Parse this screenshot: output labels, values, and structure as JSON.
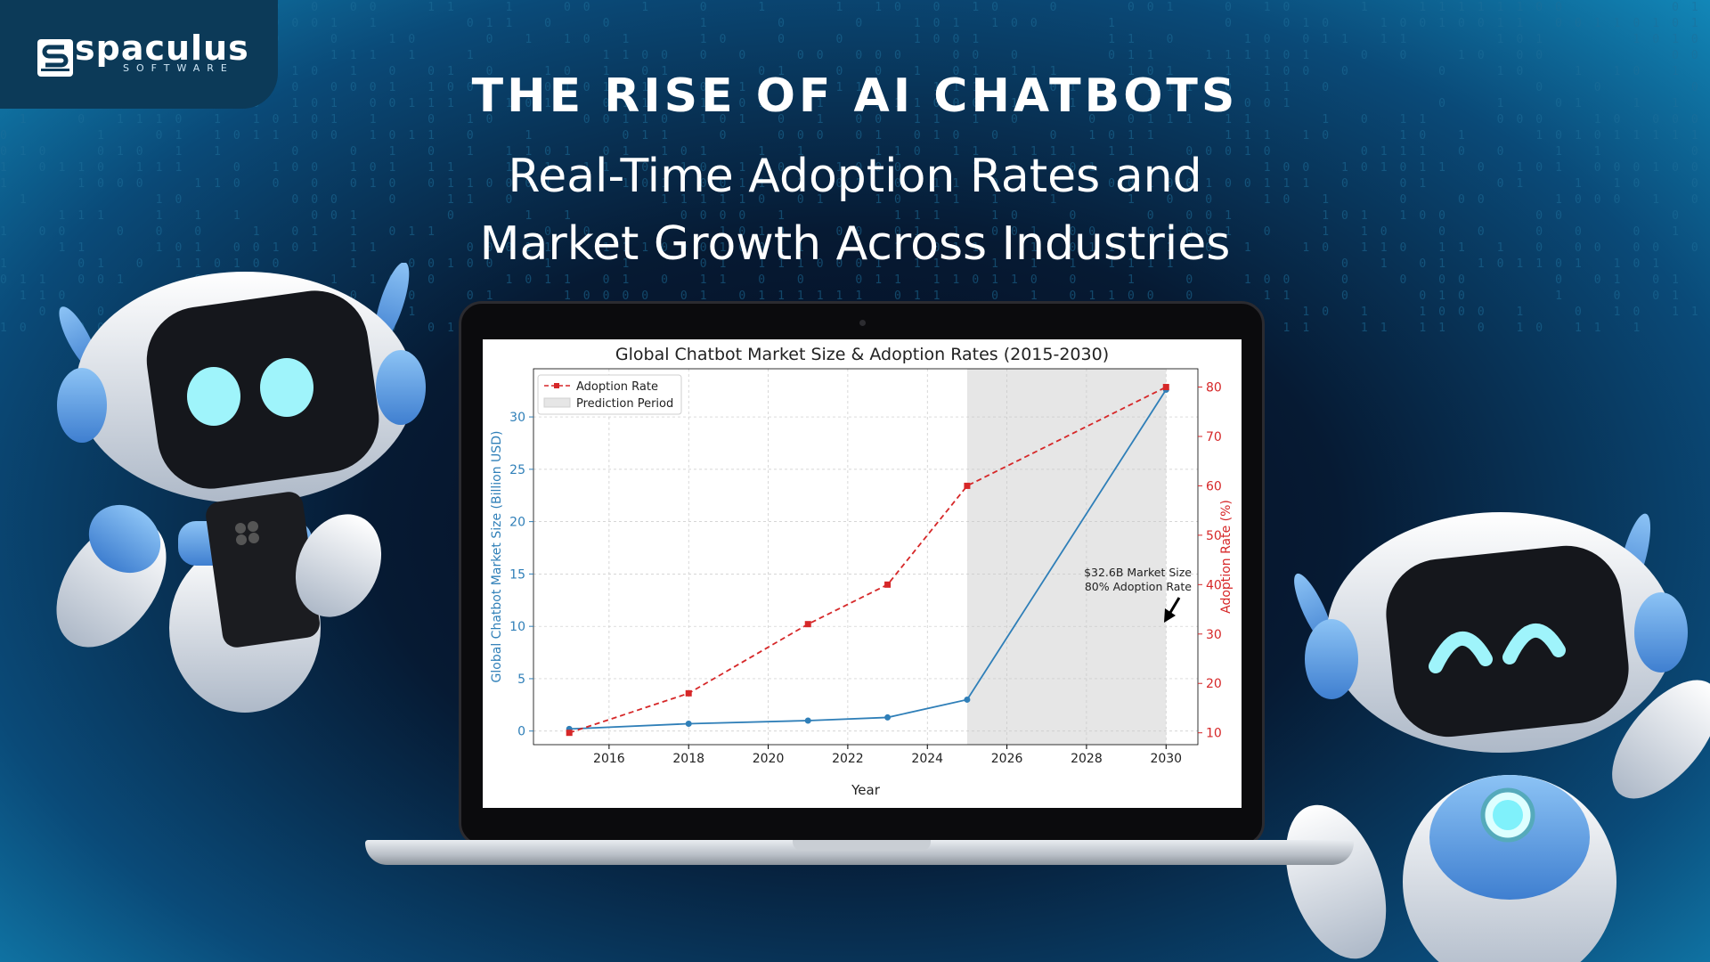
{
  "brand": {
    "name": "spaculus",
    "sub": "SOFTWARE"
  },
  "headline": {
    "title": "THE RISE OF AI CHATBOTS",
    "subtitle_line1": "Real-Time Adoption Rates and",
    "subtitle_line2": "Market Growth Across Industries"
  },
  "colors": {
    "market": "#2f7fb8",
    "adoption": "#d62728",
    "prediction": "#e6e6e6"
  },
  "chart_data": {
    "type": "line",
    "title": "Global Chatbot Market Size & Adoption Rates (2015-2030)",
    "xlabel": "Year",
    "ylabel_left": "Global Chatbot Market Size (Billion USD)",
    "ylabel_right": "Adoption Rate (%)",
    "xlim": [
      2014.1,
      2030.8
    ],
    "ylim_left": [
      -1.3,
      34.6
    ],
    "ylim_right": [
      7.6,
      83.7
    ],
    "x_ticks": [
      2016,
      2018,
      2020,
      2022,
      2024,
      2026,
      2028,
      2030
    ],
    "y_left_ticks": [
      0,
      5,
      10,
      15,
      20,
      25,
      30
    ],
    "y_right_ticks": [
      10,
      20,
      30,
      40,
      50,
      60,
      70,
      80
    ],
    "prediction_period": [
      2025,
      2030
    ],
    "legend": [
      "Adoption Rate",
      "Prediction Period"
    ],
    "legend_position": "top-left",
    "grid": true,
    "annotation": {
      "line1": "$32.6B Market Size",
      "line2": "80% Adoption Rate",
      "target": [
        2030,
        32.6
      ]
    },
    "series": [
      {
        "name": "Market Size",
        "axis": "left",
        "style": "solid-circle",
        "x": [
          2015,
          2018,
          2021,
          2023,
          2025,
          2030
        ],
        "values": [
          0.2,
          0.7,
          1.0,
          1.3,
          3.0,
          32.6
        ]
      },
      {
        "name": "Adoption Rate",
        "axis": "right",
        "style": "dashed-square",
        "x": [
          2015,
          2018,
          2021,
          2023,
          2025,
          2030
        ],
        "values": [
          10,
          18,
          32,
          40,
          60,
          80
        ]
      }
    ]
  }
}
